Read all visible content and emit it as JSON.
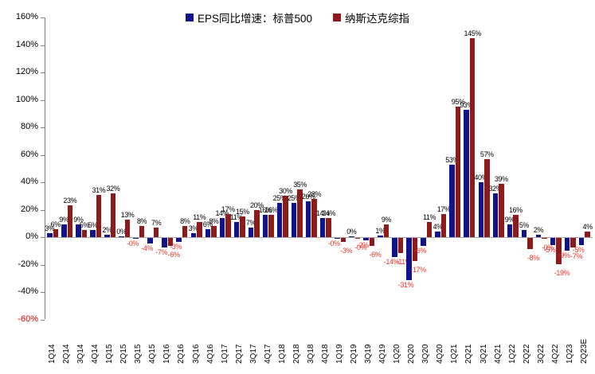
{
  "chart_data": {
    "type": "bar",
    "title": "",
    "xlabel": "",
    "ylabel": "",
    "ylim": [
      -60,
      160
    ],
    "y_tick_step": 20,
    "y_ticks": [
      "160%",
      "140%",
      "120%",
      "100%",
      "80%",
      "60%",
      "40%",
      "20%",
      "0%",
      "-20%",
      "-40%",
      "-60%"
    ],
    "grid": false,
    "legend_position": "top",
    "colors": {
      "sp500": "#12128c",
      "nasdaq": "#8e1b1b",
      "negative_label": "#f0342a",
      "negative_axis_tick": "#e60000",
      "axis": "#808080"
    },
    "categories": [
      "1Q14",
      "2Q14",
      "3Q14",
      "4Q14",
      "1Q15",
      "2Q15",
      "3Q15",
      "4Q15",
      "1Q16",
      "2Q16",
      "3Q16",
      "4Q16",
      "1Q17",
      "2Q17",
      "3Q17",
      "4Q17",
      "1Q18",
      "2Q18",
      "3Q18",
      "4Q18",
      "1Q19",
      "2Q19",
      "3Q19",
      "4Q19",
      "1Q20",
      "2Q20",
      "3Q20",
      "4Q20",
      "1Q21",
      "2Q21",
      "3Q21",
      "4Q21",
      "1Q22",
      "2Q22",
      "3Q22",
      "4Q22",
      "1Q23",
      "2Q23E"
    ],
    "series": [
      {
        "name": "EPS同比增速：标普500",
        "color": "#12128c",
        "values": [
          3,
          9,
          9,
          5,
          2,
          0.5,
          -0.5,
          -4,
          -7,
          -3,
          3,
          6,
          14,
          11,
          7,
          16,
          25,
          25,
          26,
          14,
          -0.5,
          0.5,
          -2,
          1,
          -14,
          -31,
          -6,
          4,
          53,
          93,
          40,
          32,
          9,
          5,
          2,
          -5,
          -9,
          -5
        ],
        "labels": [
          "3%",
          "9%",
          "9%",
          "5%",
          "2%",
          "0%",
          "-0%",
          "-4%",
          "-7%",
          "-3%",
          "3%",
          "6%",
          "14%",
          "11%",
          "7%",
          "16%",
          "25%",
          "25%",
          "26%",
          "14%",
          "-0%",
          "0%",
          "-2%",
          "1%",
          "-14%",
          "-31%",
          "-6%",
          "4%",
          "53%",
          "93%",
          "40%",
          "32%",
          "9%",
          "5%",
          "2%",
          "-5%",
          "-9%",
          "-5%"
        ]
      },
      {
        "name": "纳斯达克综指",
        "color": "#8e1b1b",
        "values": [
          6,
          23,
          5,
          31,
          32,
          13,
          8,
          7,
          -6,
          8,
          11,
          8,
          17,
          15,
          20,
          16,
          30,
          35,
          28,
          14,
          -3,
          -0.5,
          -6,
          9,
          -11,
          -17,
          11,
          17,
          95,
          145,
          57,
          39,
          16,
          -8,
          -0.5,
          -19,
          -7,
          4
        ],
        "labels": [
          "6%",
          "23%",
          "5%",
          "31%",
          "32%",
          "13%",
          "8%",
          "7%",
          "-6%",
          "8%",
          "11%",
          "8%",
          "17%",
          "15%",
          "20%",
          "16%",
          "30%",
          "35%",
          "28%",
          "14%",
          "-3%",
          "-0%",
          "-6%",
          "9%",
          "-11%",
          "-17%",
          "11%",
          "17%",
          "95%",
          "145%",
          "57%",
          "39%",
          "16%",
          "-8%",
          "-0%",
          "-19%",
          "-7%",
          "4%"
        ]
      }
    ]
  }
}
